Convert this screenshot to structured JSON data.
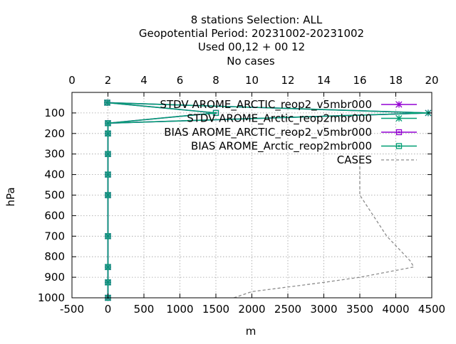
{
  "title_lines": [
    "8 stations Selection: ALL",
    "Geopotential  Period: 20231002-20231002",
    "Used  00,12  + 00 12",
    "No cases"
  ],
  "chart_data": {
    "type": "line",
    "xlabel": "m",
    "ylabel": "hPa",
    "x_bottom": {
      "range": [
        -500,
        4500
      ],
      "ticks": [
        -500,
        0,
        500,
        1000,
        1500,
        2000,
        2500,
        3000,
        3500,
        4000,
        4500
      ]
    },
    "x_top": {
      "range": [
        0,
        20
      ],
      "ticks": [
        0,
        2,
        4,
        6,
        8,
        10,
        12,
        14,
        16,
        18,
        20
      ]
    },
    "y": {
      "range": [
        1000,
        0
      ],
      "inverted": true,
      "ticks": [
        100,
        200,
        300,
        400,
        500,
        600,
        700,
        800,
        900,
        1000
      ]
    },
    "grid": true,
    "legend_position": "top-right",
    "colors": {
      "purple": "#9400d3",
      "green": "#009e73",
      "gray": "#8c8c8c"
    },
    "series": [
      {
        "name": "STDV AROME_ARCTIC_reop2_v5mbr000",
        "axis": "bottom",
        "color": "#9400d3",
        "marker": "star",
        "points": [
          [
            -10,
            50
          ],
          [
            4450,
            100
          ],
          [
            0,
            150
          ],
          [
            0,
            200
          ],
          [
            0,
            300
          ],
          [
            0,
            400
          ],
          [
            0,
            500
          ],
          [
            0,
            700
          ],
          [
            0,
            850
          ],
          [
            0,
            925
          ],
          [
            0,
            1000
          ]
        ]
      },
      {
        "name": "STDV AROME_Arctic_reop2mbr000",
        "axis": "bottom",
        "color": "#009e73",
        "marker": "star",
        "points": [
          [
            -10,
            50
          ],
          [
            4450,
            100
          ],
          [
            0,
            150
          ],
          [
            0,
            200
          ],
          [
            0,
            300
          ],
          [
            0,
            400
          ],
          [
            0,
            500
          ],
          [
            0,
            700
          ],
          [
            0,
            850
          ],
          [
            0,
            925
          ],
          [
            0,
            1000
          ]
        ]
      },
      {
        "name": "BIAS AROME_ARCTIC_reop2_v5mbr000",
        "axis": "bottom",
        "color": "#9400d3",
        "marker": "square",
        "points": [
          [
            -10,
            50
          ],
          [
            1500,
            100
          ],
          [
            0,
            150
          ],
          [
            0,
            200
          ],
          [
            0,
            300
          ],
          [
            0,
            400
          ],
          [
            0,
            500
          ],
          [
            0,
            700
          ],
          [
            0,
            850
          ],
          [
            0,
            925
          ],
          [
            0,
            1000
          ]
        ]
      },
      {
        "name": "BIAS AROME_Arctic_reop2mbr000",
        "axis": "bottom",
        "color": "#009e73",
        "marker": "square",
        "points": [
          [
            -10,
            50
          ],
          [
            1500,
            100
          ],
          [
            0,
            150
          ],
          [
            0,
            200
          ],
          [
            0,
            300
          ],
          [
            0,
            400
          ],
          [
            0,
            500
          ],
          [
            0,
            700
          ],
          [
            0,
            850
          ],
          [
            0,
            925
          ],
          [
            0,
            1000
          ]
        ]
      },
      {
        "name": "CASES",
        "axis": "top",
        "color": "#8c8c8c",
        "marker": "none",
        "dashed": true,
        "points": [
          [
            16.0,
            360
          ],
          [
            16.0,
            500
          ],
          [
            17.5,
            700
          ],
          [
            18.8,
            820
          ],
          [
            19.0,
            850
          ],
          [
            16.0,
            900
          ],
          [
            14.0,
            925
          ],
          [
            10.0,
            970
          ],
          [
            9.0,
            1000
          ]
        ]
      }
    ]
  }
}
